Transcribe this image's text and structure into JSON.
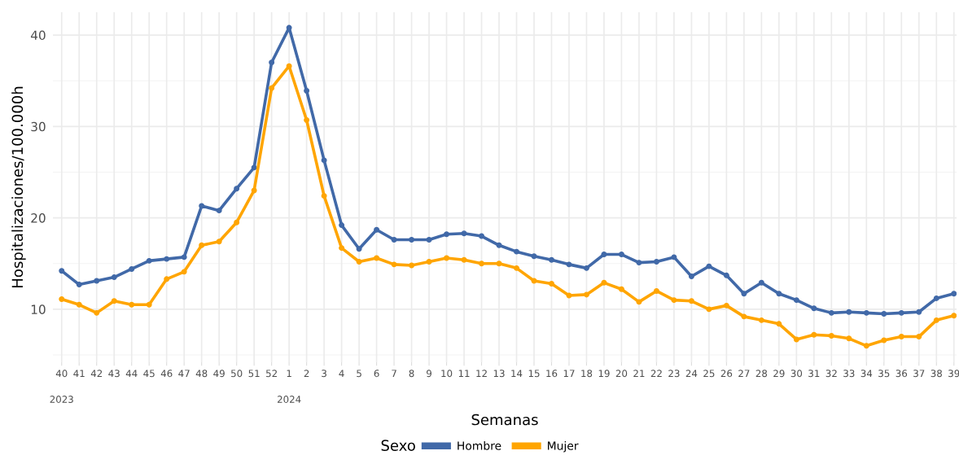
{
  "chart_data": {
    "type": "line",
    "xlabel": "Semanas",
    "ylabel": "Hospitalizaciones/100.000h",
    "legend_title": "Sexo",
    "categories": [
      "40\n\n2023",
      "41",
      "42",
      "43",
      "44",
      "45",
      "46",
      "47",
      "48",
      "49",
      "50",
      "51",
      "52",
      "1\n\n2024",
      "2",
      "3",
      "4",
      "5",
      "6",
      "7",
      "8",
      "9",
      "10",
      "11",
      "12",
      "13",
      "14",
      "15",
      "16",
      "17",
      "18",
      "19",
      "20",
      "21",
      "22",
      "23",
      "24",
      "25",
      "26",
      "27",
      "28",
      "29",
      "30",
      "31",
      "32",
      "33",
      "34",
      "35",
      "36",
      "37",
      "38",
      "39"
    ],
    "series": [
      {
        "name": "Hombre",
        "color": "#4169a8",
        "values": [
          14.2,
          12.7,
          13.1,
          13.5,
          14.4,
          15.3,
          15.5,
          15.7,
          21.3,
          20.8,
          23.2,
          25.5,
          37.0,
          40.8,
          33.9,
          26.3,
          19.2,
          16.6,
          18.7,
          17.6,
          17.6,
          17.6,
          18.2,
          18.3,
          18.0,
          17.0,
          16.3,
          15.8,
          15.4,
          14.9,
          14.5,
          16.0,
          16.0,
          15.1,
          15.2,
          15.7,
          13.6,
          14.7,
          13.7,
          11.7,
          12.9,
          11.7,
          11.0,
          10.1,
          9.6,
          9.7,
          9.6,
          9.5,
          9.6,
          9.7,
          11.2,
          11.7
        ]
      },
      {
        "name": "Mujer",
        "color": "#ffa500",
        "values": [
          11.1,
          10.5,
          9.6,
          10.9,
          10.5,
          10.5,
          13.3,
          14.1,
          17.0,
          17.4,
          19.5,
          23.0,
          34.2,
          36.6,
          30.7,
          22.4,
          16.7,
          15.2,
          15.6,
          14.9,
          14.8,
          15.2,
          15.6,
          15.4,
          15.0,
          15.0,
          14.5,
          13.1,
          12.8,
          11.5,
          11.6,
          12.9,
          12.2,
          10.8,
          12.0,
          11.0,
          10.9,
          10.0,
          10.4,
          9.2,
          8.8,
          8.4,
          6.7,
          7.2,
          7.1,
          6.8,
          6.0,
          6.6,
          7.0,
          7.0,
          8.8,
          9.3
        ]
      }
    ],
    "ylim": [
      4.2,
      42.5
    ],
    "yticks": [
      10,
      20,
      30,
      40
    ],
    "grid": true,
    "legend": "bottom",
    "marker": "circle",
    "line_style": "solid"
  }
}
